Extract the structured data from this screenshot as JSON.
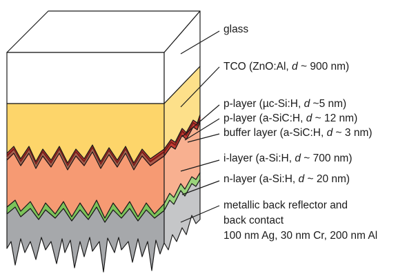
{
  "layers": [
    {
      "id": "glass",
      "label": "glass",
      "color": "#ffffff"
    },
    {
      "id": "tco",
      "label": "TCO (ZnO:Al, d ~ 900 nm)",
      "label_parts": [
        "TCO (ZnO:Al, ",
        "d",
        " ~ 900 nm)"
      ],
      "color": "#fdd56a"
    },
    {
      "id": "p1",
      "label": "p-layer (µc-Si:H, d ~5 nm)",
      "label_parts": [
        "p-layer (µc-Si:H, ",
        "d",
        " ~5 nm)"
      ],
      "color": "#c53b33"
    },
    {
      "id": "p2",
      "label": "p-layer (a-SiC:H, d ~ 12 nm)",
      "label_parts": [
        "p-layer (a-SiC:H, ",
        "d",
        " ~ 12 nm)"
      ],
      "color": "#7a1e1a"
    },
    {
      "id": "buffer",
      "label": "buffer layer (a-SiC:H, d ~ 3 nm)",
      "label_parts": [
        "buffer layer (a-SiC:H, ",
        "d",
        " ~ 3 nm)"
      ],
      "color": "#9c6a55"
    },
    {
      "id": "i",
      "label": "i-layer (a-Si:H, d ~ 700 nm)",
      "label_parts": [
        "i-layer (a-Si:H, ",
        "d",
        " ~ 700 nm)"
      ],
      "color": "#f69a73"
    },
    {
      "id": "n",
      "label": "n-layer (a-Si:H, d ~ 20 nm)",
      "label_parts": [
        "n-layer (a-Si:H, ",
        "d",
        " ~ 20 nm)"
      ],
      "color": "#7cc35a"
    },
    {
      "id": "back",
      "label_lines": [
        "metallic back reflector and",
        "back contact",
        "100 nm Ag, 30 nm Cr, 200 nm Al"
      ],
      "color": "#a6a8ab"
    }
  ]
}
